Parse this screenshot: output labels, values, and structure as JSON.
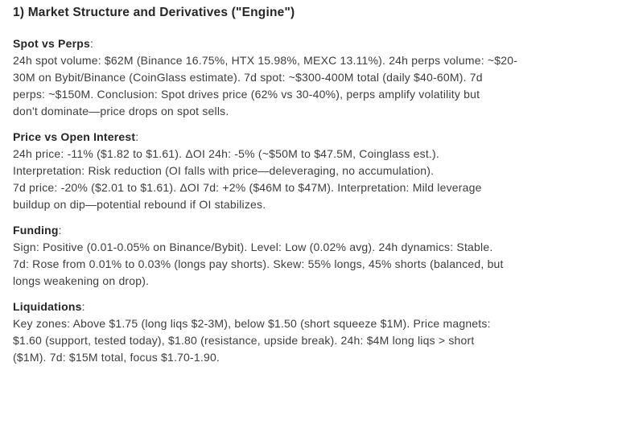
{
  "page": {
    "title": "1) Market Structure and Derivatives (\"Engine\")",
    "colors": {
      "background": "#ffffff",
      "title": "#262626",
      "heading": "#262626",
      "body_text": "#3d3d3d"
    }
  },
  "sections": [
    {
      "id": "spot-vs-perps",
      "heading": "Spot vs Perps",
      "lines": [
        "24h spot volume: $62M (Binance 16.75%, HTX 15.98%, MEXC 13.11%). 24h perps volume: ~$20-",
        "30M on Bybit/Binance (CoinGlass estimate). 7d spot: ~$300-400M total (daily $40-60M). 7d",
        "perps: ~$150M. Conclusion: Spot drives price (62% vs 30-40%), perps amplify volatility but",
        "don't dominate—price drops on spot sells."
      ]
    },
    {
      "id": "price-vs-open-interest",
      "heading": "Price vs Open Interest",
      "lines": [
        "24h price: -11% ($1.82 to $1.61). ΔOI 24h: -5% (~$50M to $47.5M, Coinglass est.).",
        "Interpretation: Risk reduction (OI falls with price—deleveraging, no accumulation).",
        "7d price: -20% ($2.01 to $1.61). ΔOI 7d: +2% ($46M to $47M). Interpretation: Mild leverage",
        "buildup on dip—potential rebound if OI stabilizes."
      ]
    },
    {
      "id": "funding",
      "heading": "Funding",
      "lines": [
        "Sign: Positive (0.01-0.05% on Binance/Bybit). Level: Low (0.02% avg). 24h dynamics: Stable.",
        "7d: Rose from 0.01% to 0.03% (longs pay shorts). Skew: 55% longs, 45% shorts (balanced, but",
        "longs weakening on drop)."
      ]
    },
    {
      "id": "liquidations",
      "heading": "Liquidations",
      "lines": [
        "Key zones: Above $1.75 (long liqs $2-3M), below $1.50 (short squeeze $1M). Price magnets:",
        "$1.60 (support, tested today), $1.80 (resistance, upside break). 24h: $4M long liqs > short",
        "($1M). 7d: $15M total, focus $1.70-1.90."
      ]
    }
  ]
}
